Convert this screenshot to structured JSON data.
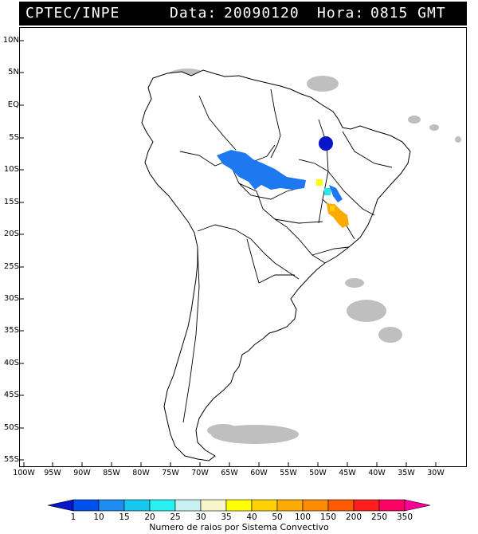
{
  "header": {
    "agency": "CPTEC/INPE",
    "date_label": "Data:",
    "date_value": "20090120",
    "time_label": "Hora:",
    "time_value": "0815 GMT"
  },
  "latitude_ticks": [
    "10N",
    "5N",
    "EQ",
    "5S",
    "10S",
    "15S",
    "20S",
    "25S",
    "30S",
    "35S",
    "40S",
    "45S",
    "50S",
    "55S"
  ],
  "longitude_ticks": [
    "100W",
    "95W",
    "90W",
    "85W",
    "80W",
    "75W",
    "70W",
    "65W",
    "60W",
    "55W",
    "50W",
    "45W",
    "40W",
    "35W",
    "30W"
  ],
  "legend": {
    "caption": "Numero de raios por Sistema Convectivo",
    "labels": [
      "1",
      "10",
      "15",
      "20",
      "25",
      "30",
      "35",
      "40",
      "50",
      "100",
      "150",
      "200",
      "250",
      "350"
    ],
    "colors": [
      "#0a14c8",
      "#0050f0",
      "#1e8cf0",
      "#14c8f0",
      "#28f0f0",
      "#c8f0f0",
      "#f5f5c8",
      "#ffff00",
      "#ffd200",
      "#ffaa00",
      "#ff8c00",
      "#ff5a00",
      "#ff1e1e",
      "#ff0064",
      "#ff0096"
    ]
  },
  "systems": [
    {
      "name": "amazon-system",
      "color": "#1e78f0"
    },
    {
      "name": "northeast-cell",
      "color": "#0a14c8"
    },
    {
      "name": "central-cell-yellow",
      "color": "#ffff00"
    },
    {
      "name": "central-cell-cyan",
      "color": "#28e6f0"
    },
    {
      "name": "southeast-system",
      "color": "#ffaa00"
    }
  ]
}
